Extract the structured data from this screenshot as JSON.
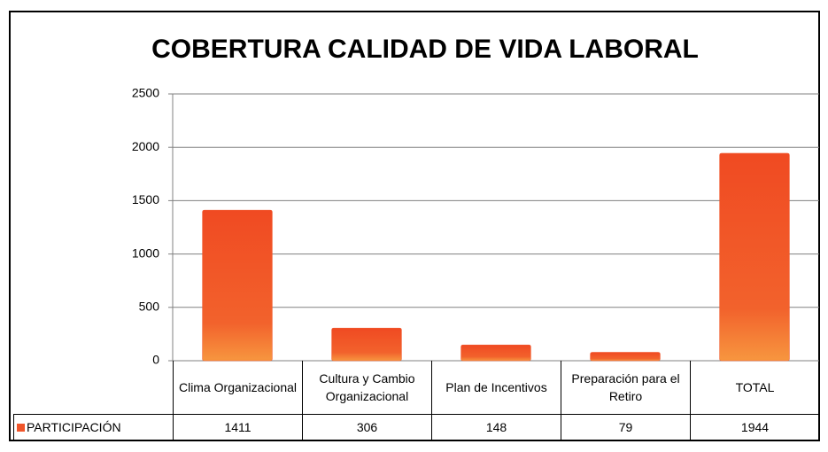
{
  "chart_data": {
    "type": "bar",
    "title": "COBERTURA CALIDAD DE VIDA LABORAL",
    "categories": [
      "Clima Organizacional",
      "Cultura y Cambio Organizacional",
      "Plan de Incentivos",
      "Preparación para el Retiro",
      "TOTAL"
    ],
    "series": [
      {
        "name": "PARTICIPACIÓN",
        "color": "#f0552a",
        "values": [
          1411,
          306,
          148,
          79,
          1944
        ]
      }
    ],
    "ylim": [
      0,
      2500
    ],
    "yticks": [
      0,
      500,
      1000,
      1500,
      2000,
      2500
    ],
    "grid": true,
    "data_table": true
  }
}
